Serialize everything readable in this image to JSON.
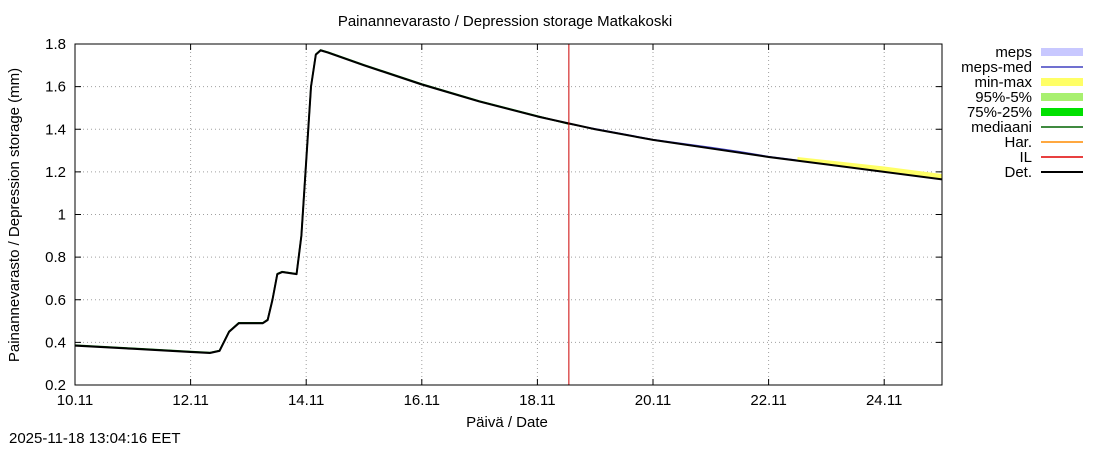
{
  "chart_data": {
    "type": "line",
    "title": "Painannevarasto / Depression storage   Matkakoski",
    "xlabel": "Päivä / Date",
    "ylabel": "Painannevarasto / Depression storage (mm)",
    "ylim": [
      0.2,
      1.8
    ],
    "yticks": [
      0.2,
      0.4,
      0.6,
      0.8,
      1,
      1.2,
      1.4,
      1.6,
      1.8
    ],
    "ytick_labels": [
      "0.2",
      "0.4",
      "0.6",
      "0.8",
      "1",
      "1.2",
      "1.4",
      "1.6",
      "1.8"
    ],
    "xlim": [
      "2025-11-10",
      "2025-11-25"
    ],
    "xticks": [
      "2025-11-10",
      "2025-11-12",
      "2025-11-14",
      "2025-11-16",
      "2025-11-18",
      "2025-11-20",
      "2025-11-22",
      "2025-11-24"
    ],
    "xtick_labels": [
      "10.11",
      "12.11",
      "14.11",
      "16.11",
      "18.11",
      "20.11",
      "22.11",
      "24.11"
    ],
    "grid": true,
    "legend_position": "right",
    "legend": [
      {
        "label": "meps",
        "color": "#c8c8ff",
        "kind": "band"
      },
      {
        "label": "meps-med",
        "color": "#4040c0",
        "kind": "line"
      },
      {
        "label": "min-max",
        "color": "#ffff66",
        "kind": "band"
      },
      {
        "label": "95%-5%",
        "color": "#a8f070",
        "kind": "band"
      },
      {
        "label": "75%-25%",
        "color": "#00e000",
        "kind": "band"
      },
      {
        "label": "mediaani",
        "color": "#006400",
        "kind": "line"
      },
      {
        "label": "Har.",
        "color": "#ff8c00",
        "kind": "line"
      },
      {
        "label": "IL",
        "color": "#e00000",
        "kind": "line"
      },
      {
        "label": "Det.",
        "color": "#000000",
        "kind": "line"
      }
    ],
    "current_time_marker": "2025-11-18T13:04",
    "series": [
      {
        "name": "Det.",
        "color": "#000000",
        "points": [
          [
            "2025-11-10T00:00",
            0.385
          ],
          [
            "2025-11-11T00:00",
            0.37
          ],
          [
            "2025-11-12T00:00",
            0.355
          ],
          [
            "2025-11-12T08:00",
            0.35
          ],
          [
            "2025-11-12T12:00",
            0.36
          ],
          [
            "2025-11-12T16:00",
            0.45
          ],
          [
            "2025-11-12T20:00",
            0.49
          ],
          [
            "2025-11-13T06:00",
            0.49
          ],
          [
            "2025-11-13T08:00",
            0.505
          ],
          [
            "2025-11-13T10:00",
            0.6
          ],
          [
            "2025-11-13T12:00",
            0.72
          ],
          [
            "2025-11-13T14:00",
            0.73
          ],
          [
            "2025-11-13T20:00",
            0.72
          ],
          [
            "2025-11-13T22:00",
            0.9
          ],
          [
            "2025-11-14T00:00",
            1.25
          ],
          [
            "2025-11-14T02:00",
            1.6
          ],
          [
            "2025-11-14T04:00",
            1.75
          ],
          [
            "2025-11-14T06:00",
            1.77
          ],
          [
            "2025-11-14T09:00",
            1.76
          ],
          [
            "2025-11-15T00:00",
            1.7
          ],
          [
            "2025-11-16T00:00",
            1.61
          ],
          [
            "2025-11-17T00:00",
            1.53
          ],
          [
            "2025-11-18T00:00",
            1.46
          ],
          [
            "2025-11-19T00:00",
            1.4
          ],
          [
            "2025-11-20T00:00",
            1.35
          ],
          [
            "2025-11-21T00:00",
            1.31
          ],
          [
            "2025-11-22T00:00",
            1.27
          ],
          [
            "2025-11-23T00:00",
            1.235
          ],
          [
            "2025-11-24T00:00",
            1.2
          ],
          [
            "2025-11-25T00:00",
            1.165
          ]
        ]
      },
      {
        "name": "mediaani",
        "color": "#006400",
        "points": [
          [
            "2025-11-10T00:00",
            0.387
          ],
          [
            "2025-11-11T00:00",
            0.372
          ],
          [
            "2025-11-12T00:00",
            0.357
          ],
          [
            "2025-11-12T08:00",
            0.352
          ],
          [
            "2025-11-12T12:00",
            0.362
          ],
          [
            "2025-11-12T16:00",
            0.452
          ],
          [
            "2025-11-12T20:00",
            0.492
          ],
          [
            "2025-11-13T06:00",
            0.492
          ],
          [
            "2025-11-13T08:00",
            0.507
          ],
          [
            "2025-11-13T10:00",
            0.602
          ],
          [
            "2025-11-13T12:00",
            0.722
          ],
          [
            "2025-11-13T14:00",
            0.732
          ],
          [
            "2025-11-13T20:00",
            0.722
          ],
          [
            "2025-11-13T22:00",
            0.902
          ],
          [
            "2025-11-14T00:00",
            1.252
          ],
          [
            "2025-11-14T02:00",
            1.602
          ],
          [
            "2025-11-14T04:00",
            1.752
          ],
          [
            "2025-11-14T06:00",
            1.772
          ],
          [
            "2025-11-14T09:00",
            1.762
          ],
          [
            "2025-11-15T00:00",
            1.702
          ],
          [
            "2025-11-16T00:00",
            1.612
          ],
          [
            "2025-11-17T00:00",
            1.532
          ],
          [
            "2025-11-18T00:00",
            1.462
          ],
          [
            "2025-11-18T13:00",
            1.425
          ]
        ]
      },
      {
        "name": "meps-med",
        "color": "#4040c0",
        "points": [
          [
            "2025-11-18T13:00",
            1.425
          ],
          [
            "2025-11-19T00:00",
            1.402
          ],
          [
            "2025-11-20T00:00",
            1.352
          ],
          [
            "2025-11-21T00:00",
            1.315
          ],
          [
            "2025-11-21T12:00",
            1.295
          ],
          [
            "2025-11-22T00:00",
            1.272
          ],
          [
            "2025-11-22T12:00",
            1.255
          ]
        ]
      },
      {
        "name": "Har.",
        "color": "#ff8c00",
        "points": [
          [
            "2025-11-18T13:00",
            1.425
          ],
          [
            "2025-11-19T00:00",
            1.401
          ],
          [
            "2025-11-20T00:00",
            1.351
          ]
        ]
      },
      {
        "name": "IL",
        "color": "#e00000",
        "points": [
          [
            "2025-11-17T00:00",
            1.531
          ],
          [
            "2025-11-18T00:00",
            1.461
          ],
          [
            "2025-11-18T13:00",
            1.426
          ]
        ]
      }
    ],
    "bands": [
      {
        "name": "min-max",
        "color": "#ffff66",
        "x": [
          "2025-11-22T12:00",
          "2025-11-23T00:00",
          "2025-11-24T00:00",
          "2025-11-25T00:00"
        ],
        "low": [
          1.255,
          1.235,
          1.2,
          1.165
        ],
        "high": [
          1.27,
          1.255,
          1.225,
          1.19
        ]
      }
    ]
  },
  "footer": {
    "timestamp": "2025-11-18 13:04:16 EET"
  }
}
